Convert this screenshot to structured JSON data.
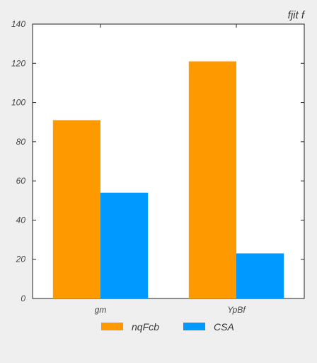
{
  "chart_data": {
    "type": "bar",
    "title": "fjit  f",
    "xlabel": "",
    "ylabel": "",
    "categories": [
      "gm",
      "YpBf"
    ],
    "series": [
      {
        "name": "nqFcb",
        "values": [
          91,
          121
        ],
        "color": "#ff9900"
      },
      {
        "name": "CSA",
        "values": [
          54,
          23
        ],
        "color": "#0099ff"
      }
    ],
    "ylim": [
      0,
      140
    ],
    "yticks": [
      0,
      20,
      40,
      60,
      80,
      100,
      120,
      140
    ],
    "grid": false,
    "legend_position": "bottom-center"
  }
}
